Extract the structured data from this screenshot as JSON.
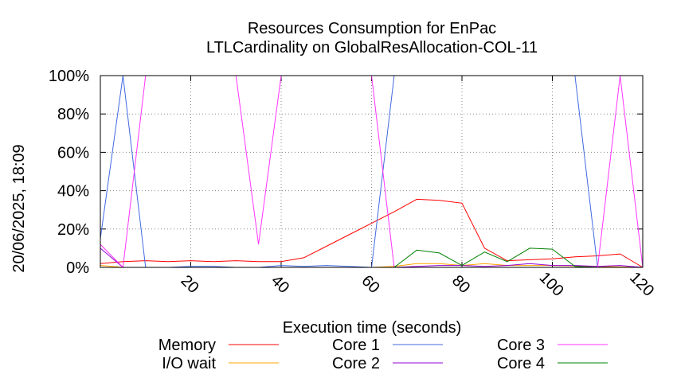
{
  "chart_data": {
    "type": "line",
    "title": "Resources Consumption for EnPac",
    "subtitle": "LTLCardinality on GlobalResAllocation-COL-11",
    "xlabel": "Execution time (seconds)",
    "ylabel": "",
    "xlim": [
      0,
      120
    ],
    "ylim": [
      0,
      100
    ],
    "grid": true,
    "legend_position": "bottom",
    "x_ticks": [
      {
        "value": 20,
        "label": "20"
      },
      {
        "value": 40,
        "label": "40"
      },
      {
        "value": 60,
        "label": "60"
      },
      {
        "value": 80,
        "label": "80"
      },
      {
        "value": 100,
        "label": "100"
      },
      {
        "value": 120,
        "label": "120"
      }
    ],
    "y_ticks": [
      {
        "value": 0,
        "label": "0%"
      },
      {
        "value": 20,
        "label": "20%"
      },
      {
        "value": 40,
        "label": "40%"
      },
      {
        "value": 60,
        "label": "60%"
      },
      {
        "value": 80,
        "label": "80%"
      },
      {
        "value": 100,
        "label": "100%"
      }
    ],
    "series": [
      {
        "name": "Memory",
        "color": "#ff0000",
        "points": [
          [
            0,
            2
          ],
          [
            5,
            3
          ],
          [
            10,
            3.5
          ],
          [
            15,
            3
          ],
          [
            20,
            3.5
          ],
          [
            25,
            3
          ],
          [
            30,
            3.5
          ],
          [
            35,
            3
          ],
          [
            40,
            3
          ],
          [
            45,
            5
          ],
          [
            50,
            11
          ],
          [
            55,
            17
          ],
          [
            60,
            23
          ],
          [
            65,
            29
          ],
          [
            70,
            35.5
          ],
          [
            75,
            35
          ],
          [
            80,
            33.5
          ],
          [
            85,
            10
          ],
          [
            90,
            3.5
          ],
          [
            95,
            4
          ],
          [
            100,
            4.5
          ],
          [
            105,
            5.5
          ],
          [
            110,
            6
          ],
          [
            115,
            7
          ],
          [
            120,
            0
          ]
        ]
      },
      {
        "name": "I/O wait",
        "color": "#ffa500",
        "points": [
          [
            0,
            1
          ],
          [
            5,
            0
          ],
          [
            10,
            0
          ],
          [
            20,
            0
          ],
          [
            30,
            0
          ],
          [
            40,
            0
          ],
          [
            50,
            0
          ],
          [
            60,
            0
          ],
          [
            65,
            0.5
          ],
          [
            70,
            2
          ],
          [
            75,
            2
          ],
          [
            80,
            1
          ],
          [
            85,
            2
          ],
          [
            90,
            1
          ],
          [
            95,
            1
          ],
          [
            100,
            1
          ],
          [
            110,
            0.5
          ],
          [
            120,
            0
          ]
        ]
      },
      {
        "name": "Core 1",
        "color": "#4169e1",
        "points": [
          [
            0,
            15
          ],
          [
            5,
            100
          ],
          [
            10,
            0
          ],
          [
            15,
            0
          ],
          [
            20,
            0.5
          ],
          [
            25,
            0.5
          ],
          [
            30,
            0
          ],
          [
            35,
            0
          ],
          [
            40,
            1
          ],
          [
            45,
            0.5
          ],
          [
            50,
            1
          ],
          [
            55,
            0.5
          ],
          [
            60,
            0
          ],
          [
            65,
            100
          ],
          [
            70,
            100
          ],
          [
            75,
            100
          ],
          [
            80,
            100
          ],
          [
            85,
            100
          ],
          [
            90,
            100
          ],
          [
            95,
            100
          ],
          [
            100,
            100
          ],
          [
            105,
            100
          ],
          [
            110,
            0
          ],
          [
            115,
            0
          ],
          [
            120,
            0
          ]
        ]
      },
      {
        "name": "Core 2",
        "color": "#9400d3",
        "points": [
          [
            0,
            10
          ],
          [
            5,
            0
          ],
          [
            10,
            0
          ],
          [
            20,
            0
          ],
          [
            25,
            0
          ],
          [
            30,
            0
          ],
          [
            40,
            0
          ],
          [
            50,
            0
          ],
          [
            60,
            0
          ],
          [
            65,
            0
          ],
          [
            70,
            0.5
          ],
          [
            75,
            1
          ],
          [
            80,
            1
          ],
          [
            85,
            0.5
          ],
          [
            90,
            1
          ],
          [
            95,
            2
          ],
          [
            100,
            1
          ],
          [
            105,
            1
          ],
          [
            110,
            0.5
          ],
          [
            115,
            1
          ],
          [
            120,
            0
          ]
        ]
      },
      {
        "name": "Core 3",
        "color": "#ff33ff",
        "points": [
          [
            0,
            12
          ],
          [
            5,
            0
          ],
          [
            10,
            100
          ],
          [
            15,
            100
          ],
          [
            20,
            100
          ],
          [
            25,
            100
          ],
          [
            30,
            100
          ],
          [
            35,
            12
          ],
          [
            40,
            100
          ],
          [
            45,
            100
          ],
          [
            50,
            100
          ],
          [
            55,
            100
          ],
          [
            60,
            100
          ],
          [
            65,
            0
          ],
          [
            70,
            0
          ],
          [
            75,
            0
          ],
          [
            80,
            0
          ],
          [
            85,
            0
          ],
          [
            90,
            0
          ],
          [
            95,
            0
          ],
          [
            100,
            0
          ],
          [
            105,
            0
          ],
          [
            110,
            0
          ],
          [
            115,
            100
          ],
          [
            120,
            0
          ]
        ]
      },
      {
        "name": "Core 4",
        "color": "#008000",
        "points": [
          [
            0,
            0
          ],
          [
            5,
            0
          ],
          [
            10,
            0
          ],
          [
            20,
            0
          ],
          [
            30,
            0
          ],
          [
            40,
            0
          ],
          [
            50,
            0
          ],
          [
            60,
            0
          ],
          [
            65,
            0
          ],
          [
            70,
            9
          ],
          [
            75,
            7.5
          ],
          [
            80,
            1
          ],
          [
            85,
            8
          ],
          [
            90,
            3
          ],
          [
            95,
            10
          ],
          [
            100,
            9.5
          ],
          [
            105,
            0.5
          ],
          [
            110,
            0
          ],
          [
            115,
            0
          ],
          [
            120,
            0
          ]
        ]
      }
    ],
    "timestamp_label": "20/06/2025, 18:09"
  }
}
